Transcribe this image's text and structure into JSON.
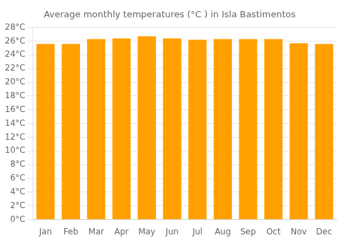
{
  "chart_data": {
    "type": "bar",
    "title": "Average monthly temperatures (°C ) in Isla Bastimentos",
    "categories": [
      "Jan",
      "Feb",
      "Mar",
      "Apr",
      "May",
      "Jun",
      "Jul",
      "Aug",
      "Sep",
      "Oct",
      "Nov",
      "Dec"
    ],
    "values": [
      25.6,
      25.6,
      26.3,
      26.4,
      26.7,
      26.4,
      26.2,
      26.3,
      26.3,
      26.3,
      25.7,
      25.6
    ],
    "color": "#FFA000",
    "ylim": [
      0,
      28
    ],
    "yticks": [
      {
        "value": 0,
        "label": "0°C"
      },
      {
        "value": 2,
        "label": "2°C"
      },
      {
        "value": 4,
        "label": "4°C"
      },
      {
        "value": 6,
        "label": "6°C"
      },
      {
        "value": 8,
        "label": "8°C"
      },
      {
        "value": 10,
        "label": "10°C"
      },
      {
        "value": 12,
        "label": "12°C"
      },
      {
        "value": 14,
        "label": "14°C"
      },
      {
        "value": 16,
        "label": "16°C"
      },
      {
        "value": 18,
        "label": "18°C"
      },
      {
        "value": 20,
        "label": "20°C"
      },
      {
        "value": 22,
        "label": "22°C"
      },
      {
        "value": 24,
        "label": "24°C"
      },
      {
        "value": 26,
        "label": "26°C"
      },
      {
        "value": 28,
        "label": "28°C"
      }
    ],
    "grid": true
  }
}
